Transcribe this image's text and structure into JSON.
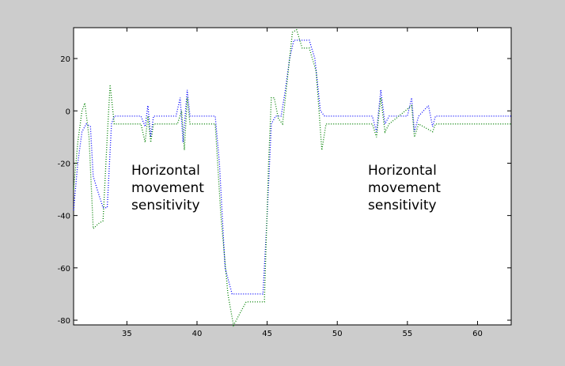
{
  "chart_data": {
    "type": "line",
    "xlim": [
      31.2,
      62.4
    ],
    "ylim": [
      -81.8,
      31.8
    ],
    "xticks": [
      35,
      40,
      45,
      50,
      55,
      60
    ],
    "yticks": [
      -80,
      -60,
      -40,
      -20,
      0,
      20
    ],
    "annotations": [
      {
        "lines": [
          "Horizontal",
          "movement",
          "sensitivity"
        ]
      },
      {
        "lines": [
          "Horizontal",
          "movement",
          "sensitivity"
        ]
      }
    ],
    "series": [
      {
        "color": "#0000ff",
        "x": [
          31.2,
          31.5,
          31.8,
          32.1,
          32.4,
          32.6,
          33.0,
          33.3,
          33.6,
          33.9,
          34.1,
          35,
          36,
          36.3,
          36.5,
          36.7,
          36.9,
          38.5,
          38.8,
          39.0,
          39.3,
          39.5,
          41.3,
          41.6,
          42.0,
          42.5,
          43,
          44,
          44.7,
          45,
          45.3,
          45.6,
          46,
          46.3,
          46.6,
          46.9,
          47.5,
          48.0,
          48.4,
          48.8,
          49.1,
          52.5,
          52.8,
          53.1,
          53.4,
          53.7,
          55,
          55.3,
          55.5,
          55.8,
          56.5,
          56.8,
          57.0,
          62.4
        ],
        "values": [
          -38,
          -20,
          -8,
          -5,
          -6,
          -25,
          -32,
          -37,
          -37,
          -5,
          -2,
          -2,
          -2,
          -6,
          2,
          -10,
          -2,
          -2,
          5,
          -12,
          8,
          -2,
          -2,
          -20,
          -60,
          -70,
          -70,
          -70,
          -70,
          -40,
          -5,
          -2,
          -2,
          8,
          20,
          27,
          27,
          27,
          20,
          0,
          -2,
          -2,
          -8,
          8,
          -5,
          -2,
          -2,
          5,
          -8,
          -2,
          2,
          -6,
          -2,
          -2
        ]
      },
      {
        "color": "#008000",
        "x": [
          31.2,
          31.5,
          31.8,
          32.0,
          32.3,
          32.6,
          33.0,
          33.3,
          33.6,
          33.8,
          34.1,
          36,
          36.3,
          36.5,
          36.7,
          36.9,
          38.6,
          38.9,
          39.1,
          39.3,
          39.5,
          41.3,
          41.7,
          42.2,
          42.6,
          43.0,
          43.5,
          44.5,
          44.8,
          45.1,
          45.3,
          45.5,
          45.8,
          46.1,
          46.4,
          46.8,
          47.1,
          47.5,
          48.0,
          48.5,
          48.9,
          49.2,
          52.5,
          52.8,
          53.1,
          53.4,
          53.7,
          55.3,
          55.5,
          55.8,
          56.8,
          57.0,
          62.4
        ],
        "values": [
          -30,
          -12,
          0,
          3,
          -10,
          -45,
          -43,
          -42,
          -10,
          10,
          -5,
          -5,
          -12,
          -2,
          -12,
          -5,
          -5,
          0,
          -15,
          5,
          -5,
          -5,
          -40,
          -70,
          -82,
          -78,
          -73,
          -73,
          -73,
          -20,
          5,
          5,
          -3,
          -5,
          10,
          30,
          31,
          24,
          24,
          15,
          -15,
          -5,
          -5,
          -10,
          5,
          -8,
          -5,
          2,
          -10,
          -5,
          -8,
          -5,
          -5
        ]
      }
    ]
  }
}
